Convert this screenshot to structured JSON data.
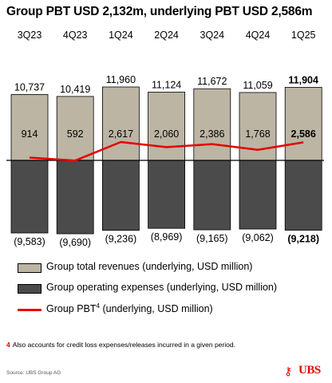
{
  "chart_data": {
    "type": "bar",
    "title": "Group PBT USD 2,132m, underlying PBT USD 2,586m",
    "categories": [
      "3Q23",
      "4Q23",
      "1Q24",
      "2Q24",
      "3Q24",
      "4Q24",
      "1Q25"
    ],
    "series": [
      {
        "name": "Group total revenues (underlying, USD million)",
        "type": "bar",
        "values": [
          10737,
          10419,
          11960,
          11124,
          11672,
          11059,
          11904
        ],
        "labels": [
          "10,737",
          "10,419",
          "11,960",
          "11,124",
          "11,672",
          "11,059",
          "11,904"
        ]
      },
      {
        "name": "Group operating expenses (underlying, USD million)",
        "type": "bar",
        "values": [
          -9583,
          -9690,
          -9236,
          -8969,
          -9165,
          -9062,
          -9218
        ],
        "labels": [
          "(9,583)",
          "(9,690)",
          "(9,236)",
          "(8,969)",
          "(9,165)",
          "(9,062)",
          "(9,218)"
        ]
      },
      {
        "name": "Group PBT",
        "name_suffix": "4",
        "name_tail": " (underlying, USD million)",
        "type": "line",
        "values": [
          914,
          592,
          2617,
          2060,
          2386,
          1768,
          2586
        ],
        "labels": [
          "914",
          "592",
          "2,617",
          "2,060",
          "2,386",
          "1,768",
          "2,586"
        ]
      }
    ],
    "highlight_index": 6,
    "colors": {
      "revenue": "#bcb5a4",
      "expense": "#4b4b4b",
      "pbt_line": "#e60000"
    }
  },
  "footnote": {
    "mark": "4",
    "text": "Also accounts for credit loss expenses/releases incurred in a given period."
  },
  "source": "Source: UBS Group AG",
  "logo": {
    "icon": "ubs-keys-icon",
    "text": "UBS"
  }
}
